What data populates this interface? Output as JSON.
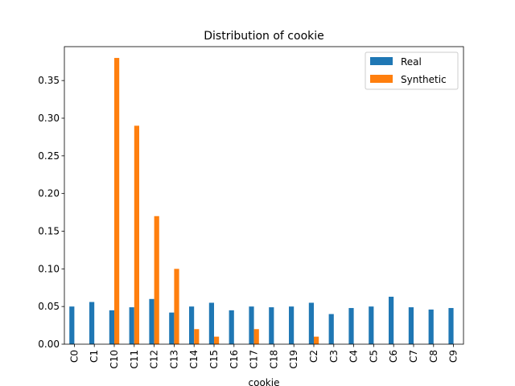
{
  "chart_data": {
    "type": "bar",
    "title": "Distribution of cookie",
    "xlabel": "cookie",
    "ylabel": "",
    "categories": [
      "C0",
      "C1",
      "C10",
      "C11",
      "C12",
      "C13",
      "C14",
      "C15",
      "C16",
      "C17",
      "C18",
      "C19",
      "C2",
      "C3",
      "C4",
      "C5",
      "C6",
      "C7",
      "C8",
      "C9"
    ],
    "series": [
      {
        "name": "Real",
        "color": "#1f77b4",
        "values": [
          0.05,
          0.056,
          0.045,
          0.049,
          0.06,
          0.042,
          0.05,
          0.055,
          0.045,
          0.05,
          0.049,
          0.05,
          0.055,
          0.04,
          0.048,
          0.05,
          0.063,
          0.049,
          0.046,
          0.048
        ]
      },
      {
        "name": "Synthetic",
        "color": "#ff7f0e",
        "values": [
          0,
          0,
          0.38,
          0.29,
          0.17,
          0.1,
          0.02,
          0.01,
          0,
          0.02,
          0,
          0,
          0.01,
          0,
          0,
          0,
          0,
          0,
          0,
          0
        ]
      }
    ],
    "ylim": [
      0,
      0.395
    ],
    "yticks": [
      0.0,
      0.05,
      0.1,
      0.15,
      0.2,
      0.25,
      0.3,
      0.35
    ],
    "ytick_labels": [
      "0.00",
      "0.05",
      "0.10",
      "0.15",
      "0.20",
      "0.25",
      "0.30",
      "0.35"
    ],
    "grid": false,
    "legend_position": "top-right"
  }
}
